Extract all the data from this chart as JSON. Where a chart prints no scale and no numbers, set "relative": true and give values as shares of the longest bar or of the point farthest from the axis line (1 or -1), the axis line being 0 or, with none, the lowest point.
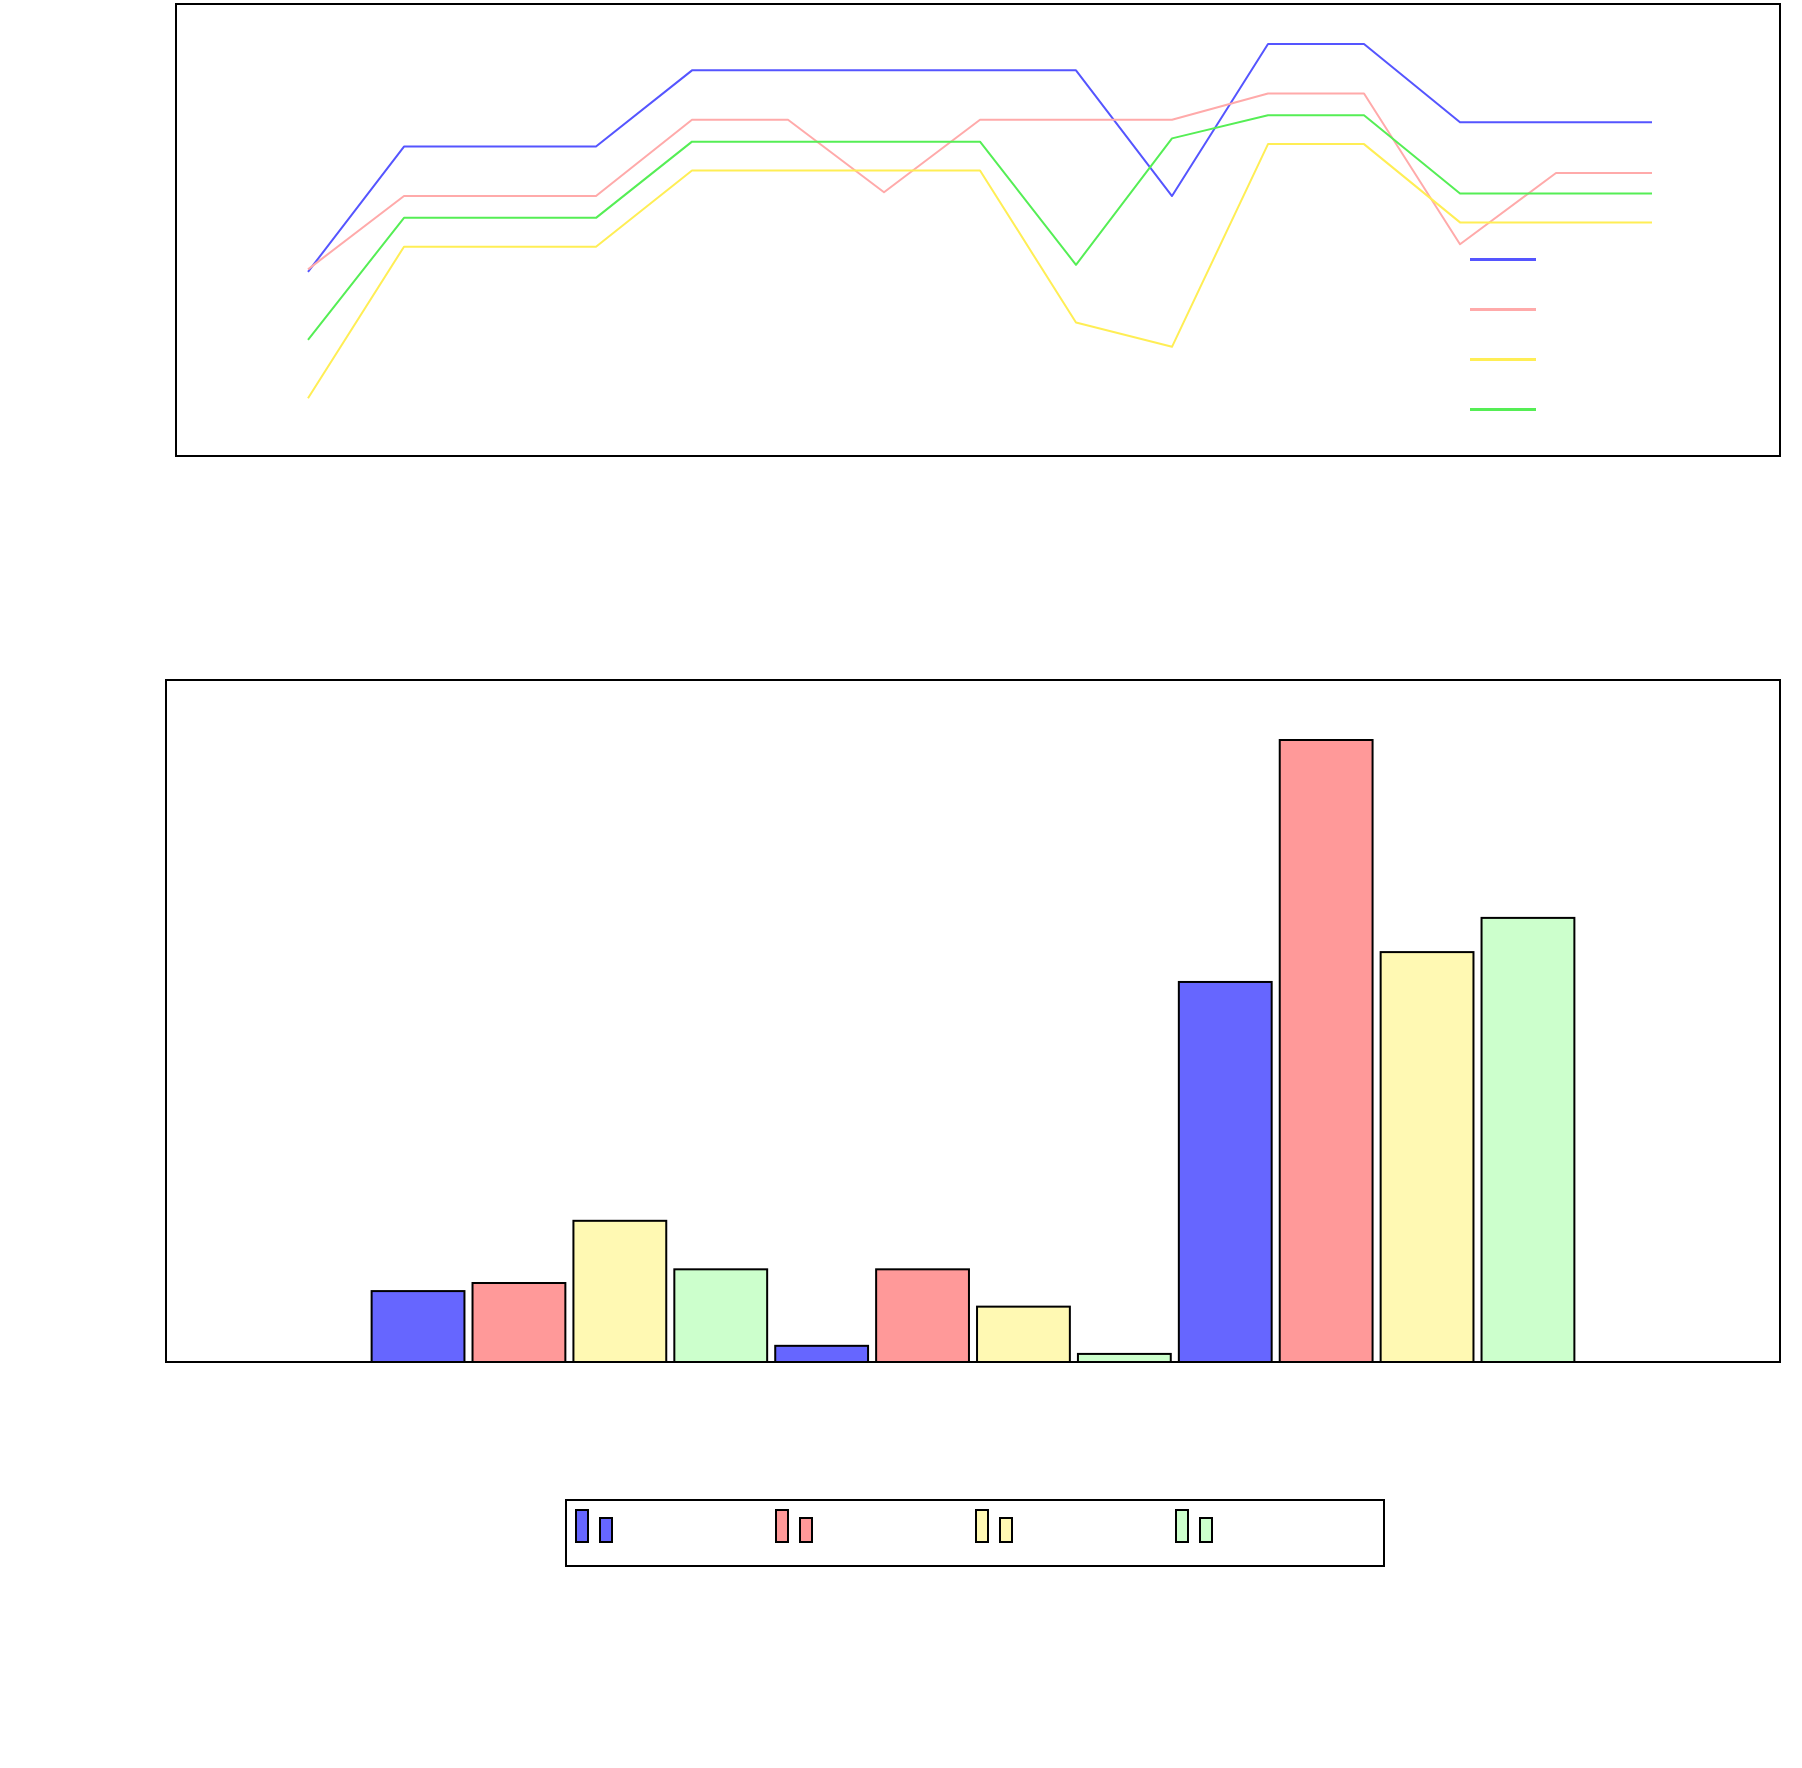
{
  "chart_data": [
    {
      "type": "line",
      "relative": true,
      "categories": [
        null,
        null,
        null,
        null,
        null,
        null,
        null,
        null,
        null,
        null,
        null,
        null,
        null,
        null,
        null
      ],
      "series": [
        {
          "color": "#5555ff",
          "values": [
            0.447,
            0.751,
            0.751,
            0.751,
            0.936,
            0.936,
            0.936,
            0.936,
            0.936,
            0.631,
            1,
            1,
            0.81,
            0.81,
            0.81
          ]
        },
        {
          "color": "#ffaaaa",
          "values": [
            0.453,
            0.631,
            0.631,
            0.631,
            0.816,
            0.816,
            0.64,
            0.816,
            0.816,
            0.816,
            0.88,
            0.88,
            0.514,
            0.687,
            0.687
          ]
        },
        {
          "color": "#ffee55",
          "values": [
            0.14,
            0.508,
            0.508,
            0.508,
            0.693,
            0.693,
            0.693,
            0.693,
            0.324,
            0.265,
            0.757,
            0.757,
            0.567,
            0.567,
            0.567
          ]
        },
        {
          "color": "#55ee55",
          "values": [
            0.282,
            0.578,
            0.578,
            0.578,
            0.763,
            0.763,
            0.763,
            0.763,
            0.464,
            0.771,
            0.827,
            0.827,
            0.637,
            0.637,
            0.637
          ]
        }
      ]
    },
    {
      "type": "bar",
      "relative": true,
      "categories": [
        null,
        null,
        null
      ],
      "series": [
        {
          "color": "#6666ff",
          "values": [
            0.114,
            0.026,
            0.611
          ]
        },
        {
          "color": "#ff9999",
          "values": [
            0.127,
            0.149,
            1
          ]
        },
        {
          "color": "#fff9b3",
          "values": [
            0.227,
            0.089,
            0.659
          ]
        },
        {
          "color": "#ccffcc",
          "values": [
            0.149,
            0.013,
            0.714
          ]
        }
      ]
    }
  ]
}
